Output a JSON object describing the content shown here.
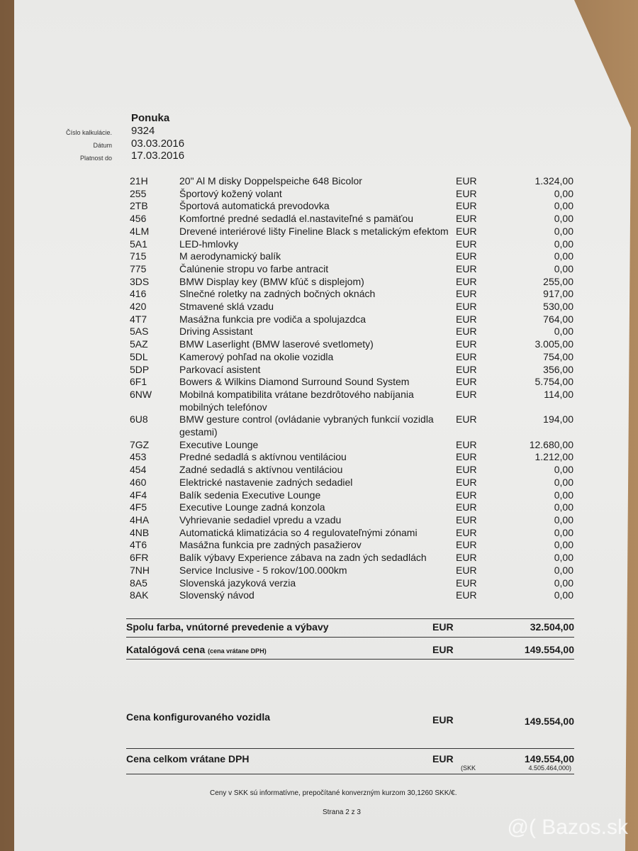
{
  "header": {
    "title": "Ponuka",
    "fields": [
      {
        "label": "Číslo kalkulácie.",
        "value": "9324"
      },
      {
        "label": "Dátum",
        "value": "03.03.2016"
      },
      {
        "label": "Platnost do",
        "value": "17.03.2016"
      }
    ]
  },
  "items": [
    {
      "code": "21H",
      "desc": "20\" Al M disky Doppelspeiche 648 Bicolor",
      "cur": "EUR",
      "amount": "1.324,00"
    },
    {
      "code": "255",
      "desc": "Športový kožený volant",
      "cur": "EUR",
      "amount": "0,00"
    },
    {
      "code": "2TB",
      "desc": "Športová automatická prevodovka",
      "cur": "EUR",
      "amount": "0,00"
    },
    {
      "code": "456",
      "desc": "Komfortné predné sedadlá el.nastaviteľné s pamäťou",
      "cur": "EUR",
      "amount": "0,00"
    },
    {
      "code": "4LM",
      "desc": "Drevené interiérové lišty Fineline Black s metalickým efektom",
      "cur": "EUR",
      "amount": "0,00"
    },
    {
      "code": "5A1",
      "desc": "LED-hmlovky",
      "cur": "EUR",
      "amount": "0,00"
    },
    {
      "code": "715",
      "desc": "M aerodynamický balík",
      "cur": "EUR",
      "amount": "0,00"
    },
    {
      "code": "775",
      "desc": "Čalúnenie stropu vo farbe antracit",
      "cur": "EUR",
      "amount": "0,00"
    },
    {
      "code": "3DS",
      "desc": "BMW Display key (BMW kľúč s displejom)",
      "cur": "EUR",
      "amount": "255,00"
    },
    {
      "code": "416",
      "desc": "Slnečné roletky na zadných bočných oknách",
      "cur": "EUR",
      "amount": "917,00"
    },
    {
      "code": "420",
      "desc": "Stmavené sklá vzadu",
      "cur": "EUR",
      "amount": "530,00"
    },
    {
      "code": "4T7",
      "desc": "Masážna funkcia pre vodiča a spolujazdca",
      "cur": "EUR",
      "amount": "764,00"
    },
    {
      "code": "5AS",
      "desc": "Driving Assistant",
      "cur": "EUR",
      "amount": "0,00"
    },
    {
      "code": "5AZ",
      "desc": "BMW Laserlight (BMW laserové svetlomety)",
      "cur": "EUR",
      "amount": "3.005,00"
    },
    {
      "code": "5DL",
      "desc": "Kamerový pohľad na okolie vozidla",
      "cur": "EUR",
      "amount": "754,00"
    },
    {
      "code": "5DP",
      "desc": "Parkovací asistent",
      "cur": "EUR",
      "amount": "356,00"
    },
    {
      "code": "6F1",
      "desc": "Bowers & Wilkins Diamond Surround Sound System",
      "cur": "EUR",
      "amount": "5.754,00"
    },
    {
      "code": "6NW",
      "desc": "Mobilná kompatibilita vrátane bezdrôtového nabíjania mobilných telefónov",
      "cur": "EUR",
      "amount": "114,00"
    },
    {
      "code": "6U8",
      "desc": "BMW gesture control (ovládanie vybraných funkcií vozidla gestami)",
      "cur": "EUR",
      "amount": "194,00"
    },
    {
      "code": "7GZ",
      "desc": "Executive Lounge",
      "cur": "EUR",
      "amount": "12.680,00"
    },
    {
      "code": "453",
      "desc": "Predné sedadlá s aktívnou ventiláciou",
      "cur": "EUR",
      "amount": "1.212,00"
    },
    {
      "code": "454",
      "desc": "Zadné sedadlá s aktívnou ventiláciou",
      "cur": "EUR",
      "amount": "0,00"
    },
    {
      "code": "460",
      "desc": "Elektrické nastavenie zadných sedadiel",
      "cur": "EUR",
      "amount": "0,00"
    },
    {
      "code": "4F4",
      "desc": "Balík sedenia Executive Lounge",
      "cur": "EUR",
      "amount": "0,00"
    },
    {
      "code": "4F5",
      "desc": "Executive Lounge zadná konzola",
      "cur": "EUR",
      "amount": "0,00"
    },
    {
      "code": "4HA",
      "desc": "Vyhrievanie sedadiel vpredu a vzadu",
      "cur": "EUR",
      "amount": "0,00"
    },
    {
      "code": "4NB",
      "desc": "Automatická klimatizácia so 4 regulovateľnými zónami",
      "cur": "EUR",
      "amount": "0,00"
    },
    {
      "code": "4T6",
      "desc": "Masážna funkcia pre zadných pasažierov",
      "cur": "EUR",
      "amount": "0,00"
    },
    {
      "code": "6FR",
      "desc": "Balík výbavy Experience zábava na zadn ých sedadlách",
      "cur": "EUR",
      "amount": "0,00"
    },
    {
      "code": "7NH",
      "desc": "Service Inclusive - 5 rokov/100.000km",
      "cur": "EUR",
      "amount": "0,00"
    },
    {
      "code": "8A5",
      "desc": "Slovenská jazyková verzia",
      "cur": "EUR",
      "amount": "0,00"
    },
    {
      "code": "8AK",
      "desc": "Slovenský návod",
      "cur": "EUR",
      "amount": "0,00"
    }
  ],
  "totals": {
    "subtotal": {
      "label": "Spolu farba, vnútorné prevedenie a výbavy",
      "cur": "EUR",
      "amount": "32.504,00"
    },
    "catalog": {
      "label": "Katalógová cena",
      "note": "(cena vrátane DPH)",
      "cur": "EUR",
      "amount": "149.554,00"
    },
    "configured": {
      "label": "Cena konfigurovaného vozidla",
      "cur": "EUR",
      "amount": "149.554,00"
    },
    "grand": {
      "label": "Cena celkom vrátane DPH",
      "cur": "EUR",
      "amount": "149.554,00",
      "skk_cur": "(SKK",
      "skk_amount": "4.505.464,000)"
    }
  },
  "footer": {
    "note": "Ceny v SKK sú informatívne, prepočítané konverzným kurzom 30,1260 SKK/€.",
    "page": "Strana 2 z 3"
  },
  "watermark": "@( Bazos.sk"
}
